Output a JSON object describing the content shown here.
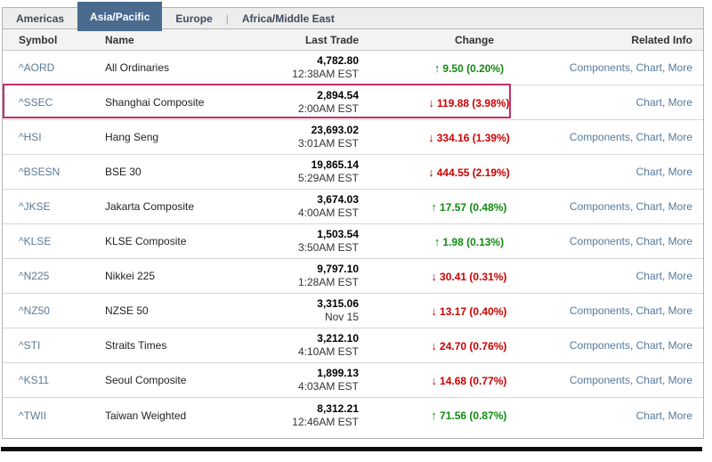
{
  "tabs": {
    "items": [
      {
        "label": "Americas",
        "selected": false
      },
      {
        "label": "Asia/Pacific",
        "selected": true
      },
      {
        "label": "Europe",
        "selected": false
      },
      {
        "label": "Africa/Middle East",
        "selected": false
      }
    ],
    "separator": "|"
  },
  "table": {
    "headers": {
      "symbol": "Symbol",
      "name": "Name",
      "last_trade": "Last Trade",
      "change": "Change",
      "related": "Related Info"
    },
    "rows": [
      {
        "symbol": "^AORD",
        "name": "All Ordinaries",
        "last": "4,782.80",
        "time": "12:38AM EST",
        "direction": "up",
        "change": "9.50 (0.20%)",
        "related": [
          "Components",
          "Chart",
          "More"
        ],
        "highlighted": false
      },
      {
        "symbol": "^SSEC",
        "name": "Shanghai Composite",
        "last": "2,894.54",
        "time": "2:00AM EST",
        "direction": "down",
        "change": "119.88 (3.98%)",
        "related": [
          "Chart",
          "More"
        ],
        "highlighted": true
      },
      {
        "symbol": "^HSI",
        "name": "Hang Seng",
        "last": "23,693.02",
        "time": "3:01AM EST",
        "direction": "down",
        "change": "334.16 (1.39%)",
        "related": [
          "Components",
          "Chart",
          "More"
        ],
        "highlighted": false
      },
      {
        "symbol": "^BSESN",
        "name": "BSE 30",
        "last": "19,865.14",
        "time": "5:29AM EST",
        "direction": "down",
        "change": "444.55 (2.19%)",
        "related": [
          "Chart",
          "More"
        ],
        "highlighted": false
      },
      {
        "symbol": "^JKSE",
        "name": "Jakarta Composite",
        "last": "3,674.03",
        "time": "4:00AM EST",
        "direction": "up",
        "change": "17.57 (0.48%)",
        "related": [
          "Components",
          "Chart",
          "More"
        ],
        "highlighted": false
      },
      {
        "symbol": "^KLSE",
        "name": "KLSE Composite",
        "last": "1,503.54",
        "time": "3:50AM EST",
        "direction": "up",
        "change": "1.98 (0.13%)",
        "related": [
          "Components",
          "Chart",
          "More"
        ],
        "highlighted": false
      },
      {
        "symbol": "^N225",
        "name": "Nikkei 225",
        "last": "9,797.10",
        "time": "1:28AM EST",
        "direction": "down",
        "change": "30.41 (0.31%)",
        "related": [
          "Chart",
          "More"
        ],
        "highlighted": false
      },
      {
        "symbol": "^NZ50",
        "name": "NZSE 50",
        "last": "3,315.06",
        "time": "Nov 15",
        "direction": "down",
        "change": "13.17 (0.40%)",
        "related": [
          "Components",
          "Chart",
          "More"
        ],
        "highlighted": false
      },
      {
        "symbol": "^STI",
        "name": "Straits Times",
        "last": "3,212.10",
        "time": "4:10AM EST",
        "direction": "down",
        "change": "24.70 (0.76%)",
        "related": [
          "Components",
          "Chart",
          "More"
        ],
        "highlighted": false
      },
      {
        "symbol": "^KS11",
        "name": "Seoul Composite",
        "last": "1,899.13",
        "time": "4:03AM EST",
        "direction": "down",
        "change": "14.68 (0.77%)",
        "related": [
          "Components",
          "Chart",
          "More"
        ],
        "highlighted": false
      },
      {
        "symbol": "^TWII",
        "name": "Taiwan Weighted",
        "last": "8,312.21",
        "time": "12:46AM EST",
        "direction": "up",
        "change": "71.56 (0.87%)",
        "related": [
          "Chart",
          "More"
        ],
        "highlighted": false
      }
    ]
  },
  "icons": {
    "up_arrow_glyph": "↑",
    "down_arrow_glyph": "↓"
  },
  "colors": {
    "up": "#118a11",
    "down": "#cc0000",
    "highlight_box": "#c22f6c",
    "selected_tab_bg": "#4a6b8e",
    "link": "#5b7a95"
  },
  "related_separator": ", "
}
